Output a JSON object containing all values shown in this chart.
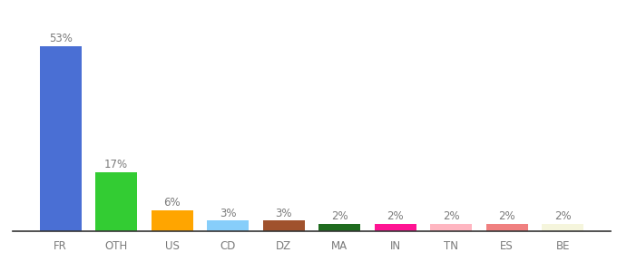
{
  "categories": [
    "FR",
    "OTH",
    "US",
    "CD",
    "DZ",
    "MA",
    "IN",
    "TN",
    "ES",
    "BE"
  ],
  "values": [
    53,
    17,
    6,
    3,
    3,
    2,
    2,
    2,
    2,
    2
  ],
  "bar_colors": [
    "#4A6FD4",
    "#33CC33",
    "#FFA500",
    "#87CEFA",
    "#A0522D",
    "#1E6B1E",
    "#FF1493",
    "#FFB6C1",
    "#F08080",
    "#F5F5DC"
  ],
  "labels": [
    "53%",
    "17%",
    "6%",
    "3%",
    "3%",
    "2%",
    "2%",
    "2%",
    "2%",
    "2%"
  ],
  "label_fontsize": 8.5,
  "tick_fontsize": 8.5,
  "ylim": [
    0,
    60
  ],
  "background_color": "#ffffff",
  "bar_width": 0.75,
  "label_color": "#7a7a7a"
}
